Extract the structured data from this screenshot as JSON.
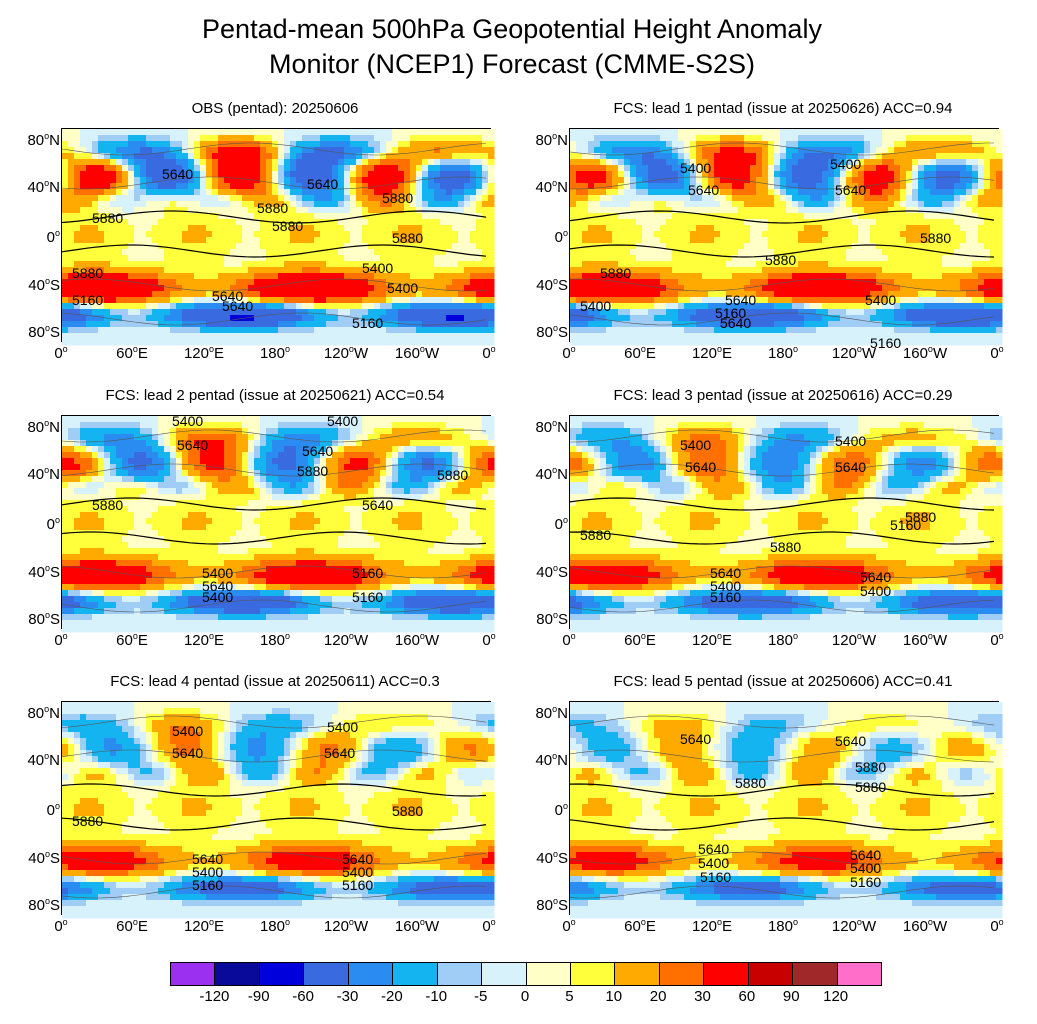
{
  "title_line1": "Pentad-mean 500hPa Geopotential Height Anomaly",
  "title_line2": "Monitor (NCEP1)  Forecast (CMME-S2S)",
  "panels": [
    {
      "title": "OBS (pentad): 20250606",
      "contours": [
        "5640",
        "5640",
        "5880",
        "5880",
        "5880",
        "5880",
        "5880",
        "5880",
        "5400",
        "5640",
        "5400",
        "5160",
        "5640",
        "5160"
      ]
    },
    {
      "title": "FCS: lead 1 pentad (issue at 20250626) ACC=0.94",
      "contours": [
        "5400",
        "5400",
        "5640",
        "5640",
        "5880",
        "5880",
        "5880",
        "5400",
        "5640",
        "5400",
        "5160",
        "5640",
        "5160"
      ]
    },
    {
      "title": "FCS: lead 2 pentad (issue at 20250621) ACC=0.54",
      "contours": [
        "5400",
        "5400",
        "5640",
        "5640",
        "5880",
        "5880",
        "5880",
        "5640",
        "5400",
        "5160",
        "5640",
        "5400",
        "5160"
      ]
    },
    {
      "title": "FCS: lead 3 pentad (issue at 20250616) ACC=0.29",
      "contours": [
        "5400",
        "5400",
        "5640",
        "5640",
        "5880",
        "5880",
        "5880",
        "5640",
        "5400",
        "5160",
        "5640",
        "5400",
        "5160"
      ]
    },
    {
      "title": "FCS: lead 4 pentad (issue at 20250611) ACC=0.3",
      "contours": [
        "5400",
        "5400",
        "5640",
        "5640",
        "5880",
        "5880",
        "5640",
        "5400",
        "5160",
        "5640",
        "5400",
        "5160"
      ]
    },
    {
      "title": "FCS: lead 5 pentad (issue at 20250606) ACC=0.41",
      "contours": [
        "5640",
        "5640",
        "5880",
        "5880",
        "5880",
        "5640",
        "5400",
        "5160",
        "5640",
        "5400",
        "5160"
      ]
    }
  ],
  "lat_labels": [
    "80",
    "40",
    "0",
    "40",
    "80"
  ],
  "lat_hemis": [
    "N",
    "N",
    "",
    "S",
    "S"
  ],
  "lon_labels": [
    "0",
    "60",
    "120",
    "180",
    "120",
    "160",
    "0"
  ],
  "lon_hemis": [
    "",
    "E",
    "E",
    "",
    "W",
    "W",
    ""
  ],
  "degree_symbol": "o",
  "colorbar": {
    "colors": [
      "#9b30f0",
      "#0a0a9a",
      "#0000dd",
      "#3a6ae0",
      "#2a8cf0",
      "#14b4f0",
      "#a0cdf5",
      "#d8f2fb",
      "#ffffc8",
      "#ffff3c",
      "#ffaa00",
      "#ff7000",
      "#ff0000",
      "#c80000",
      "#a02828",
      "#ff6ec8"
    ],
    "labels": [
      "-120",
      "-90",
      "-60",
      "-30",
      "-20",
      "-10",
      "-5",
      "0",
      "5",
      "10",
      "20",
      "30",
      "60",
      "90",
      "120"
    ]
  }
}
